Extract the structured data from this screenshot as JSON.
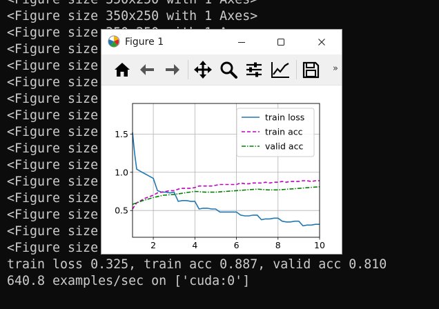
{
  "terminal": {
    "lines": [
      "<Figure size 350x250 with 1 Axes>",
      "<Figure size 350x250 with 1 Axes>",
      "<Figure size 350x250 with 1 Axes>",
      "<Figure size 350x250 with 1 Axes>",
      "<Figure size 350x250 with 1 Axes>",
      "<Figure size 350x250 with 1 Axes>",
      "<Figure size 350x250 with 1 Axes>",
      "<Figure size 350x250 with 1 Axes>",
      "<Figure size 350x250 with 1 Axes>",
      "<Figure size 350x250 with 1 Axes>",
      "<Figure size 350x250 with 1 Axes>",
      "<Figure size 350x250 with 1 Axes>",
      "<Figure size 350x250 with 1 Axes>",
      "<Figure size 350x250 with 1 Axes>",
      "<Figure size 350x250 with 1 Axes>",
      "<Figure size 350x250 with 1 Axes>",
      "train loss 0.325, train acc 0.887, valid acc 0.810",
      "640.8 examples/sec on ['cuda:0']"
    ]
  },
  "window": {
    "title": "Figure 1",
    "controls": {
      "minimize_icon": "minimize-icon",
      "maximize_icon": "maximize-icon",
      "close_icon": "close-icon"
    }
  },
  "toolbar": {
    "buttons": [
      "home-icon",
      "back-arrow-icon",
      "forward-arrow-icon",
      "pan-icon",
      "zoom-icon",
      "configure-subplots-icon",
      "edit-axis-icon",
      "save-icon"
    ],
    "overflow": "»"
  },
  "colors": {
    "terminal_bg": "#0c0c0c",
    "terminal_fg": "#cccccc",
    "train_loss": "#1f77b4",
    "train_acc": "#bf00bf",
    "valid_acc": "#008000"
  },
  "chart_data": {
    "type": "line",
    "xlim": [
      1,
      10
    ],
    "ylim": [
      0.15,
      1.9
    ],
    "xticks": [
      "2",
      "4",
      "6",
      "8",
      "10"
    ],
    "yticks": [
      "0.5",
      "1.0",
      "1.5"
    ],
    "grid": true,
    "legend_position": "upper-right",
    "series": [
      {
        "name": "train loss",
        "style": "solid",
        "color": "#1f77b4",
        "x": [
          1.0,
          1.1,
          1.2,
          1.4,
          1.6,
          1.8,
          2.0,
          2.2,
          2.4,
          2.6,
          2.8,
          3.0,
          3.2,
          3.4,
          3.6,
          3.8,
          4.0,
          4.2,
          4.4,
          4.6,
          4.8,
          5.0,
          5.2,
          5.4,
          5.6,
          5.8,
          6.0,
          6.2,
          6.4,
          6.6,
          6.8,
          7.0,
          7.2,
          7.4,
          7.6,
          7.8,
          8.0,
          8.2,
          8.4,
          8.6,
          8.8,
          9.0,
          9.2,
          9.4,
          9.6,
          9.8,
          10.0
        ],
        "y": [
          1.52,
          1.25,
          1.04,
          1.01,
          0.98,
          0.95,
          0.92,
          0.76,
          0.74,
          0.74,
          0.73,
          0.74,
          0.62,
          0.63,
          0.63,
          0.62,
          0.62,
          0.52,
          0.53,
          0.53,
          0.52,
          0.52,
          0.48,
          0.48,
          0.48,
          0.48,
          0.48,
          0.44,
          0.43,
          0.43,
          0.44,
          0.44,
          0.38,
          0.39,
          0.39,
          0.4,
          0.4,
          0.36,
          0.35,
          0.35,
          0.36,
          0.36,
          0.3,
          0.31,
          0.31,
          0.32,
          0.32
        ]
      },
      {
        "name": "train acc",
        "style": "dashed",
        "color": "#bf00bf",
        "x": [
          1.0,
          1.2,
          1.4,
          1.6,
          1.8,
          2.0,
          2.2,
          2.4,
          2.6,
          2.8,
          3.0,
          3.2,
          3.4,
          3.6,
          3.8,
          4.0,
          4.2,
          4.4,
          4.6,
          4.8,
          5.0,
          5.2,
          5.4,
          5.6,
          5.8,
          6.0,
          6.2,
          6.4,
          6.6,
          6.8,
          7.0,
          7.2,
          7.4,
          7.6,
          7.8,
          8.0,
          8.2,
          8.4,
          8.6,
          8.8,
          9.0,
          9.2,
          9.4,
          9.6,
          9.8,
          10.0
        ],
        "y": [
          0.52,
          0.6,
          0.63,
          0.66,
          0.68,
          0.7,
          0.73,
          0.74,
          0.75,
          0.76,
          0.76,
          0.78,
          0.79,
          0.79,
          0.79,
          0.8,
          0.82,
          0.82,
          0.82,
          0.82,
          0.83,
          0.84,
          0.84,
          0.84,
          0.84,
          0.84,
          0.86,
          0.85,
          0.85,
          0.86,
          0.86,
          0.86,
          0.87,
          0.86,
          0.87,
          0.87,
          0.88,
          0.87,
          0.88,
          0.88,
          0.88,
          0.89,
          0.89,
          0.88,
          0.89,
          0.89
        ]
      },
      {
        "name": "valid acc",
        "style": "dashdot",
        "color": "#008000",
        "x": [
          1.0,
          1.5,
          2.0,
          2.5,
          3.0,
          3.5,
          4.0,
          4.5,
          5.0,
          5.5,
          6.0,
          6.5,
          7.0,
          7.5,
          8.0,
          8.5,
          9.0,
          9.5,
          10.0
        ],
        "y": [
          0.58,
          0.63,
          0.67,
          0.7,
          0.71,
          0.73,
          0.75,
          0.74,
          0.74,
          0.75,
          0.76,
          0.77,
          0.78,
          0.77,
          0.77,
          0.78,
          0.79,
          0.8,
          0.81
        ]
      }
    ]
  }
}
